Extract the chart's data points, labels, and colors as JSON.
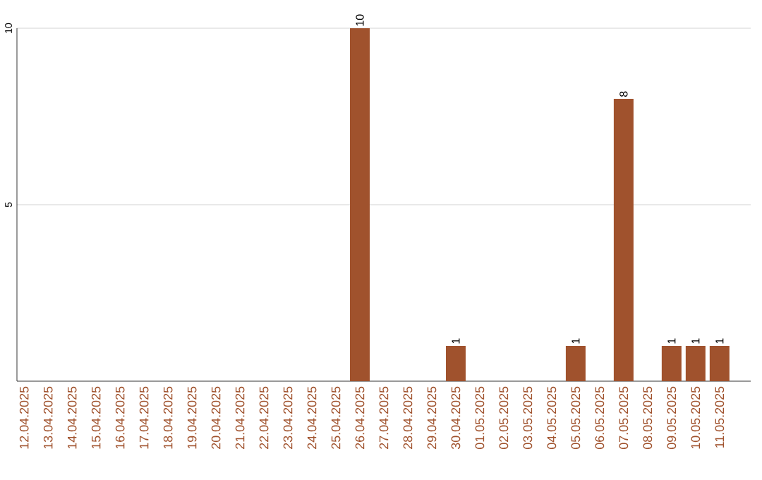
{
  "chart_data": {
    "type": "bar",
    "categories": [
      "12.04.2025",
      "13.04.2025",
      "14.04.2025",
      "15.04.2025",
      "16.04.2025",
      "17.04.2025",
      "18.04.2025",
      "19.04.2025",
      "20.04.2025",
      "21.04.2025",
      "22.04.2025",
      "23.04.2025",
      "24.04.2025",
      "25.04.2025",
      "26.04.2025",
      "27.04.2025",
      "28.04.2025",
      "29.04.2025",
      "30.04.2025",
      "01.05.2025",
      "02.05.2025",
      "03.05.2025",
      "04.05.2025",
      "05.05.2025",
      "06.05.2025",
      "07.05.2025",
      "08.05.2025",
      "09.05.2025",
      "10.05.2025",
      "11.05.2025"
    ],
    "values": [
      0,
      0,
      0,
      0,
      0,
      0,
      0,
      0,
      0,
      0,
      0,
      0,
      0,
      0,
      10,
      0,
      0,
      0,
      1,
      0,
      0,
      0,
      0,
      1,
      0,
      8,
      0,
      1,
      1,
      1
    ],
    "value_labels": [
      null,
      null,
      null,
      null,
      null,
      null,
      null,
      null,
      null,
      null,
      null,
      null,
      null,
      null,
      "10",
      null,
      null,
      null,
      "1",
      null,
      null,
      null,
      null,
      "1",
      null,
      "8",
      null,
      "1",
      "1",
      "1"
    ],
    "color": "#a0522d",
    "ylim": [
      0,
      10
    ],
    "yticks": [
      5,
      10
    ],
    "grid": "y"
  }
}
